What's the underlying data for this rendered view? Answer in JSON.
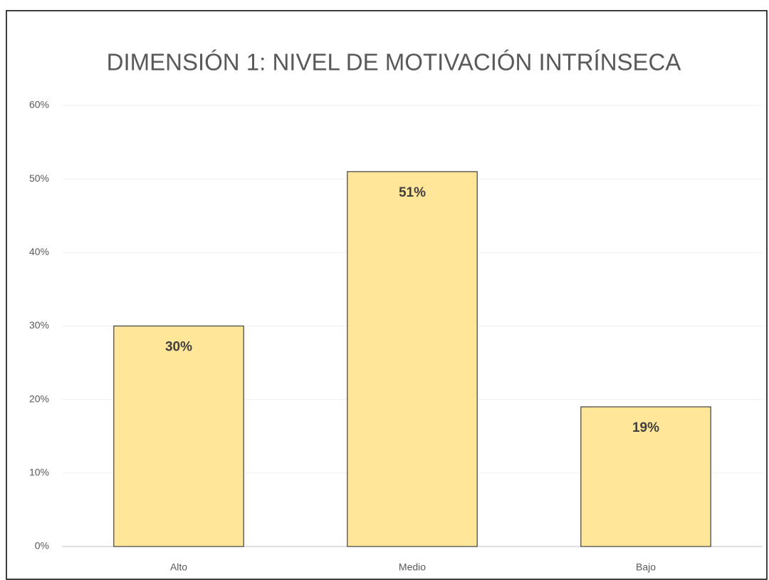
{
  "chart_data": {
    "type": "bar",
    "title": "DIMENSIÓN 1: NIVEL DE MOTIVACIÓN INTRÍNSECA",
    "categories": [
      "Alto",
      "Medio",
      "Bajo"
    ],
    "values": [
      30,
      51,
      19
    ],
    "value_labels": [
      "30%",
      "51%",
      "19%"
    ],
    "color": "#ffe699",
    "ylim": [
      0,
      60
    ],
    "yticks": [
      {
        "value": 0,
        "label": "0%"
      },
      {
        "value": 10,
        "label": "10%"
      },
      {
        "value": 20,
        "label": "20%"
      },
      {
        "value": 30,
        "label": "30%"
      },
      {
        "value": 40,
        "label": "40%"
      },
      {
        "value": 50,
        "label": "50%"
      },
      {
        "value": 60,
        "label": "60%"
      }
    ],
    "grid": true
  }
}
